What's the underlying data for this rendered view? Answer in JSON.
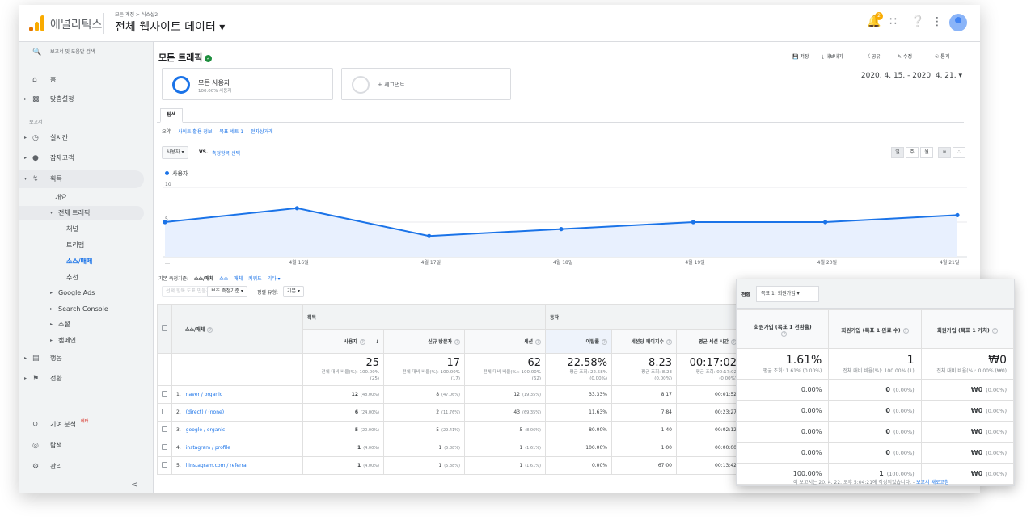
{
  "header": {
    "app_name": "애널리틱스",
    "breadcrumb": "모든 계정 > 식스샵2",
    "account": "전체 웹사이트 데이터 ▾",
    "notif_count": "2"
  },
  "sidebar": {
    "search": "보고서 및 도움말 검색",
    "home": "홈",
    "custom": "맞춤설정",
    "section": "보고서",
    "realtime": "실시간",
    "audience": "잠재고객",
    "acquisition": "획득",
    "overview": "개요",
    "all_traffic": "전체 트래픽",
    "channels": "채널",
    "treemap": "트리맵",
    "source_medium": "소스/매체",
    "referrals": "추천",
    "google_ads": "Google Ads",
    "search_console": "Search Console",
    "social": "소셜",
    "campaigns": "캠페인",
    "behavior": "행동",
    "conversions": "전환",
    "attribution": "기여 분석",
    "beta": "베타",
    "discover": "탐색",
    "admin": "관리",
    "collapse": "<"
  },
  "page": {
    "title": "모든 트래픽",
    "actions": {
      "save": "저장",
      "export": "내보내기",
      "share": "공유",
      "edit": "수정",
      "insights": "통계"
    },
    "segment_all": "모든 사용자",
    "segment_all_sub": "100.00% 사용자",
    "segment_add": "+ 세그먼트",
    "date_range": "2020. 4. 15. - 2020. 4. 21. ▾",
    "tab": "탐색",
    "subnav": [
      "요약",
      "사이트 활용 정보",
      "목표 세트 1",
      "전자상거래"
    ],
    "metric_select": "사용자 ▾",
    "vs": "VS.",
    "metric_compare": "측정항목 선택",
    "period": [
      "일",
      "주",
      "월"
    ],
    "legend": "사용자"
  },
  "chart_data": {
    "type": "line",
    "categories": [
      "…",
      "4월 16일",
      "4월 17일",
      "4월 18일",
      "4월 19일",
      "4월 20일",
      "4월 21일"
    ],
    "series": [
      {
        "name": "사용자",
        "values": [
          5,
          7,
          3,
          4,
          5,
          5,
          6
        ]
      }
    ],
    "ylim": [
      0,
      10
    ],
    "yticks": [
      "10",
      "5"
    ],
    "color": "#1a73e8"
  },
  "table": {
    "dim_label": "기본 측정기준:",
    "dim_active": "소스/매체",
    "dim_links": [
      "소스",
      "매체",
      "키워드",
      "기타 ▾"
    ],
    "plot_rows": "선택 항목 도표 만들기",
    "secondary": "보조 측정기준 ▾",
    "sort_label": "정렬 유형:",
    "sort_value": "기본 ▾",
    "group_acq": "획득",
    "group_beh": "동작",
    "dim_header": "소스/매체",
    "headers": [
      "사용자",
      "신규 방문자",
      "세션",
      "이탈률",
      "세션당 페이지수",
      "평균 세션 시간"
    ],
    "totals": [
      {
        "v": "25",
        "s": "전체 대비 비율(%): 100.00%",
        "s2": "(25)"
      },
      {
        "v": "17",
        "s": "전체 대비 비율(%): 100.00%",
        "s2": "(17)"
      },
      {
        "v": "62",
        "s": "전체 대비 비율(%): 100.00%",
        "s2": "(62)"
      },
      {
        "v": "22.58%",
        "s": "평균 조회: 22.58%",
        "s2": "(0.00%)"
      },
      {
        "v": "8.23",
        "s": "평균 조회: 8.23",
        "s2": "(0.00%)"
      },
      {
        "v": "00:17:02",
        "s": "평균 조회: 00:17:02",
        "s2": "(0.00%)"
      }
    ],
    "rows": [
      {
        "n": "1.",
        "src": "naver / organic",
        "u": "12",
        "up": "(48.00%)",
        "nv": "8",
        "nvp": "(47.06%)",
        "s": "12",
        "sp": "(19.35%)",
        "b": "33.33%",
        "pp": "8.17",
        "d": "00:01:52"
      },
      {
        "n": "2.",
        "src": "(direct) / (none)",
        "u": "6",
        "up": "(24.00%)",
        "nv": "2",
        "nvp": "(11.76%)",
        "s": "43",
        "sp": "(69.35%)",
        "b": "11.63%",
        "pp": "7.84",
        "d": "00:23:27"
      },
      {
        "n": "3.",
        "src": "google / organic",
        "u": "5",
        "up": "(20.00%)",
        "nv": "5",
        "nvp": "(29.41%)",
        "s": "5",
        "sp": "(8.06%)",
        "b": "80.00%",
        "pp": "1.40",
        "d": "00:02:12"
      },
      {
        "n": "4.",
        "src": "instagram / profile",
        "u": "1",
        "up": "(4.00%)",
        "nv": "1",
        "nvp": "(5.88%)",
        "s": "1",
        "sp": "(1.61%)",
        "b": "100.00%",
        "pp": "1.00",
        "d": "00:00:00"
      },
      {
        "n": "5.",
        "src": "l.instagram.com / referral",
        "u": "1",
        "up": "(4.00%)",
        "nv": "1",
        "nvp": "(5.88%)",
        "s": "1",
        "sp": "(1.61%)",
        "b": "0.00%",
        "pp": "67.00",
        "d": "00:13:42"
      }
    ]
  },
  "popup": {
    "label": "전환",
    "select": "목표 1: 회원가입 ▾",
    "headers": [
      "회원가입 (목표 1 전환율)",
      "회원가입 (목표 1 완료 수)",
      "회원가입 (목표 1 가치)"
    ],
    "totals": [
      {
        "v": "1.61%",
        "s": "평균 조회: 1.61% (0.00%)"
      },
      {
        "v": "1",
        "s": "전체 대비 비율(%): 100.00% (1)"
      },
      {
        "v": "₩0",
        "s": "전체 대비 비율(%): 0.00% (₩0)"
      }
    ],
    "rows": [
      {
        "c": "0.00%",
        "n": "0",
        "np": "(0.00%)",
        "v": "₩0",
        "vp": "(0.00%)"
      },
      {
        "c": "0.00%",
        "n": "0",
        "np": "(0.00%)",
        "v": "₩0",
        "vp": "(0.00%)"
      },
      {
        "c": "0.00%",
        "n": "0",
        "np": "(0.00%)",
        "v": "₩0",
        "vp": "(0.00%)"
      },
      {
        "c": "0.00%",
        "n": "0",
        "np": "(0.00%)",
        "v": "₩0",
        "vp": "(0.00%)"
      },
      {
        "c": "100.00%",
        "n": "1",
        "np": "(100.00%)",
        "v": "₩0",
        "vp": "(0.00%)"
      }
    ]
  },
  "footer": {
    "text": "이 보고서는 20. 4. 22. 오후 5:04:21에 작성되었습니다. - ",
    "link": "보고서 새로고침"
  }
}
